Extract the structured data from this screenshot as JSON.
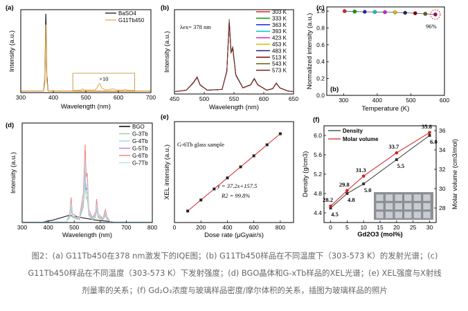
{
  "caption": {
    "line1": "图2：(a) G11Tb450在378 nm激发下的IQE图；(b) G11Tb450样品在不同温度下（303-573 K）的发射光谱；(c)",
    "line2": "G11Tb450样品在不同温度（303-573 K）下发射强度；(d) BGO晶体和G-xTb样品的XEL光谱；(e) XEL强度与X射线",
    "line3": "剂量率的关系；(f) Gd₂O₃浓度与玻璃样品密度/摩尔体积的关系，插图为玻璃样品的照片"
  },
  "chart_data": [
    {
      "panel": "(a)",
      "type": "line",
      "xlabel": "Wavelength (nm)",
      "ylabel": "Intensity (a.u.)",
      "xlim": [
        300,
        700
      ],
      "xticks": [
        "300",
        "400",
        "500",
        "600",
        "700"
      ],
      "series": [
        {
          "name": "BaSO4",
          "color": "#000000",
          "points": [
            [
              300,
              0.02
            ],
            [
              370,
              0.02
            ],
            [
              374,
              0.15
            ],
            [
              377,
              0.95
            ],
            [
              380,
              0.2
            ],
            [
              384,
              0.02
            ],
            [
              700,
              0.02
            ]
          ]
        },
        {
          "name": "G11Tb450",
          "color": "#e8a33d",
          "points": [
            [
              300,
              0.02
            ],
            [
              370,
              0.02
            ],
            [
              374,
              0.12
            ],
            [
              377,
              0.82
            ],
            [
              380,
              0.15
            ],
            [
              384,
              0.02
            ],
            [
              700,
              0.02
            ]
          ]
        }
      ],
      "inset": {
        "label": "×10",
        "xrange": [
          460,
          650
        ],
        "series_color": "#e8a33d",
        "points": [
          [
            460,
            0.01
          ],
          [
            485,
            0.03
          ],
          [
            490,
            0.12
          ],
          [
            495,
            0.04
          ],
          [
            530,
            0.05
          ],
          [
            543,
            0.55
          ],
          [
            548,
            0.2
          ],
          [
            560,
            0.04
          ],
          [
            585,
            0.12
          ],
          [
            592,
            0.05
          ],
          [
            615,
            0.03
          ],
          [
            622,
            0.08
          ],
          [
            628,
            0.02
          ],
          [
            650,
            0.01
          ]
        ]
      }
    },
    {
      "panel": "(b)",
      "type": "line",
      "annotation": "λex= 378 nm",
      "xlabel": "Wavelength (nm)",
      "ylabel": "Intensity (a.u.)",
      "xlim": [
        450,
        650
      ],
      "xticks": [
        "450",
        "500",
        "550",
        "600",
        "650"
      ],
      "series": [
        {
          "name": "303 K",
          "color": "#e02020",
          "scale": 1.0
        },
        {
          "name": "333 K",
          "color": "#00a000",
          "scale": 0.99
        },
        {
          "name": "363 K",
          "color": "#2020e0",
          "scale": 0.985
        },
        {
          "name": "393 K",
          "color": "#00c8c8",
          "scale": 0.98
        },
        {
          "name": "423 K",
          "color": "#d020d0",
          "scale": 0.975
        },
        {
          "name": "453 K",
          "color": "#d0c000",
          "scale": 0.97
        },
        {
          "name": "483 K",
          "color": "#202080",
          "scale": 0.965
        },
        {
          "name": "513 K",
          "color": "#800000",
          "scale": 0.96
        },
        {
          "name": "543 K",
          "color": "#606000",
          "scale": 0.955
        },
        {
          "name": "573 K",
          "color": "#7a1f1f",
          "scale": 0.95
        }
      ],
      "profile": [
        [
          450,
          0.03
        ],
        [
          470,
          0.05
        ],
        [
          482,
          0.15
        ],
        [
          488,
          0.22
        ],
        [
          493,
          0.12
        ],
        [
          505,
          0.05
        ],
        [
          530,
          0.06
        ],
        [
          538,
          0.3
        ],
        [
          542,
          0.95
        ],
        [
          545,
          0.55
        ],
        [
          548,
          0.6
        ],
        [
          553,
          0.25
        ],
        [
          565,
          0.08
        ],
        [
          578,
          0.12
        ],
        [
          584,
          0.2
        ],
        [
          590,
          0.12
        ],
        [
          605,
          0.05
        ],
        [
          615,
          0.07
        ],
        [
          621,
          0.14
        ],
        [
          627,
          0.08
        ],
        [
          640,
          0.04
        ],
        [
          650,
          0.03
        ]
      ]
    },
    {
      "panel": "(c)",
      "type": "scatter",
      "xlabel": "Temperature (K)",
      "ylabel": "Normalized intensity (a.u.)",
      "xlim": [
        250,
        600
      ],
      "ylim": [
        0,
        1.05
      ],
      "xticks": [
        "300",
        "400",
        "500",
        "600"
      ],
      "yticks": [
        "0.0",
        "0.2",
        "0.4",
        "0.6",
        "0.8",
        "1.0"
      ],
      "x": [
        303,
        333,
        363,
        393,
        423,
        453,
        483,
        513,
        543,
        573
      ],
      "y": [
        1.0,
        0.995,
        0.992,
        0.99,
        0.988,
        0.985,
        0.98,
        0.975,
        0.968,
        0.96
      ],
      "colors": [
        "#e02020",
        "#00a000",
        "#2020e0",
        "#00c8c8",
        "#d020d0",
        "#d0c000",
        "#202080",
        "#800000",
        "#606000",
        "#a00060"
      ],
      "annotation": "96%",
      "sublabel": "(b)"
    },
    {
      "panel": "(d)",
      "type": "line",
      "xlabel": "Wavelength (nm)",
      "ylabel": "Intensity (a.u.)",
      "xlim": [
        300,
        800
      ],
      "xticks": [
        "300",
        "400",
        "500",
        "600",
        "700",
        "800"
      ],
      "series": [
        {
          "name": "BGO",
          "color": "#000000",
          "scale": 1.0
        },
        {
          "name": "G-3Tb",
          "color": "#9ed6a5",
          "scale": 0.45
        },
        {
          "name": "G-4Tb",
          "color": "#a8d8e8",
          "scale": 0.55
        },
        {
          "name": "G-5Tb",
          "color": "#b08ad8",
          "scale": 0.62
        },
        {
          "name": "G-6Tb",
          "color": "#f08080",
          "scale": 0.88
        },
        {
          "name": "G-7Tb",
          "color": "#b8e0ea",
          "scale": 0.68
        }
      ],
      "bgo_profile": [
        [
          300,
          0.0
        ],
        [
          380,
          0.0
        ],
        [
          420,
          0.02
        ],
        [
          480,
          0.07
        ],
        [
          520,
          0.05
        ],
        [
          580,
          0.02
        ],
        [
          650,
          0.0
        ],
        [
          800,
          0.0
        ]
      ],
      "tb_profile": [
        [
          300,
          0.0
        ],
        [
          470,
          0.0
        ],
        [
          483,
          0.1
        ],
        [
          488,
          0.3
        ],
        [
          493,
          0.1
        ],
        [
          520,
          0.05
        ],
        [
          535,
          0.35
        ],
        [
          542,
          0.95
        ],
        [
          546,
          0.55
        ],
        [
          550,
          0.6
        ],
        [
          556,
          0.15
        ],
        [
          570,
          0.05
        ],
        [
          582,
          0.12
        ],
        [
          586,
          0.28
        ],
        [
          592,
          0.1
        ],
        [
          610,
          0.04
        ],
        [
          620,
          0.15
        ],
        [
          626,
          0.06
        ],
        [
          640,
          0.0
        ],
        [
          800,
          0.0
        ]
      ]
    },
    {
      "panel": "(e)",
      "type": "scatter",
      "title": "G-6Tb glass sample",
      "xlabel": "Dose rate (μGyair/s)",
      "ylabel": "XEL intensity (a.u.)",
      "xlim": [
        0,
        900
      ],
      "xticks": [
        "0",
        "200",
        "400",
        "600",
        "800"
      ],
      "x": [
        100,
        200,
        300,
        400,
        500,
        600,
        700,
        800
      ],
      "y": [
        3877.5,
        7597.5,
        11317.5,
        15037.5,
        18757.5,
        22477.5,
        26197.5,
        29917.5
      ],
      "fit": "y = 37.2x+157.5",
      "r2": "R2 = 99.8%",
      "line_color": "#e02020"
    },
    {
      "panel": "(f)",
      "type": "line",
      "xlabel": "Gd2O3 (mol%)",
      "ylabel_left": "Density (g/cm3)",
      "ylabel_right": "Molar volume (cm3/mol)",
      "xlim": [
        -2,
        32
      ],
      "xticks": [
        "0",
        "5",
        "10",
        "15",
        "20",
        "25",
        "30"
      ],
      "ylim_left": [
        4.2,
        6.2
      ],
      "yticks_left": [
        "4.4",
        "4.8",
        "5.2",
        "5.6",
        "6.0"
      ],
      "ylim_right": [
        26.5,
        36.5
      ],
      "yticks_right": [
        "28",
        "30",
        "32",
        "34",
        "36"
      ],
      "series": [
        {
          "name": "Density",
          "color": "#333333",
          "x": [
            0,
            5,
            10,
            20,
            30
          ],
          "y": [
            4.5,
            4.8,
            5.0,
            5.5,
            6.0
          ],
          "labels": [
            "4.5",
            "4.8",
            "5.0",
            "5.5",
            "6.0"
          ]
        },
        {
          "name": "Molar volume",
          "color": "#d42020",
          "x": [
            0,
            5,
            10,
            20,
            30
          ],
          "y": [
            28.2,
            29.8,
            31.3,
            33.7,
            35.8
          ],
          "labels": [
            "28.2",
            "29.8",
            "31.3",
            "33.7",
            "35.8"
          ]
        }
      ]
    }
  ]
}
